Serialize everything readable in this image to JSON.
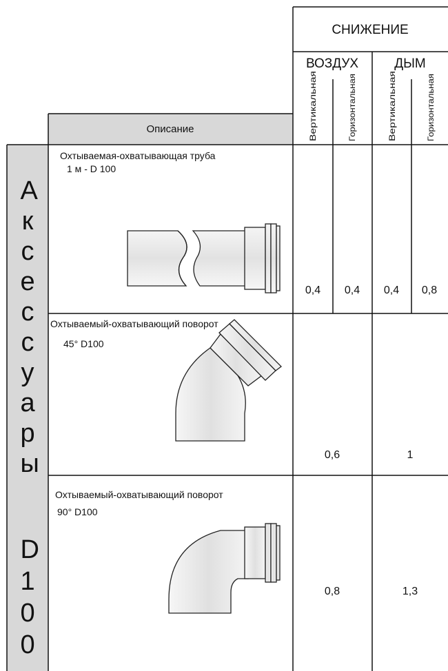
{
  "header": {
    "title": "СНИЖЕНИЕ",
    "description": "Описание",
    "groups": [
      {
        "label": "ВОЗДУХ",
        "columns": [
          "Вертикальная",
          "Горизонтальная"
        ]
      },
      {
        "label": "ДЫМ",
        "columns": [
          "Вертикальная",
          "Горизонтальная"
        ]
      }
    ]
  },
  "side": {
    "category": "Аксессуары",
    "size": "D100"
  },
  "rows": [
    {
      "title": "Охтываемая-охватывающая труба",
      "subtitle": "1 м  - D 100",
      "values": [
        "0,4",
        "0,4",
        "0,4",
        "0,8"
      ]
    },
    {
      "title": "Охтываемый-охватывающий поворот",
      "subtitle": "45°  D100",
      "values": [
        "0,6",
        "1"
      ]
    },
    {
      "title": "Охтываемый-охватывающий поворот",
      "subtitle": "90°  D100",
      "values": [
        "0,8",
        "1,3"
      ]
    }
  ]
}
